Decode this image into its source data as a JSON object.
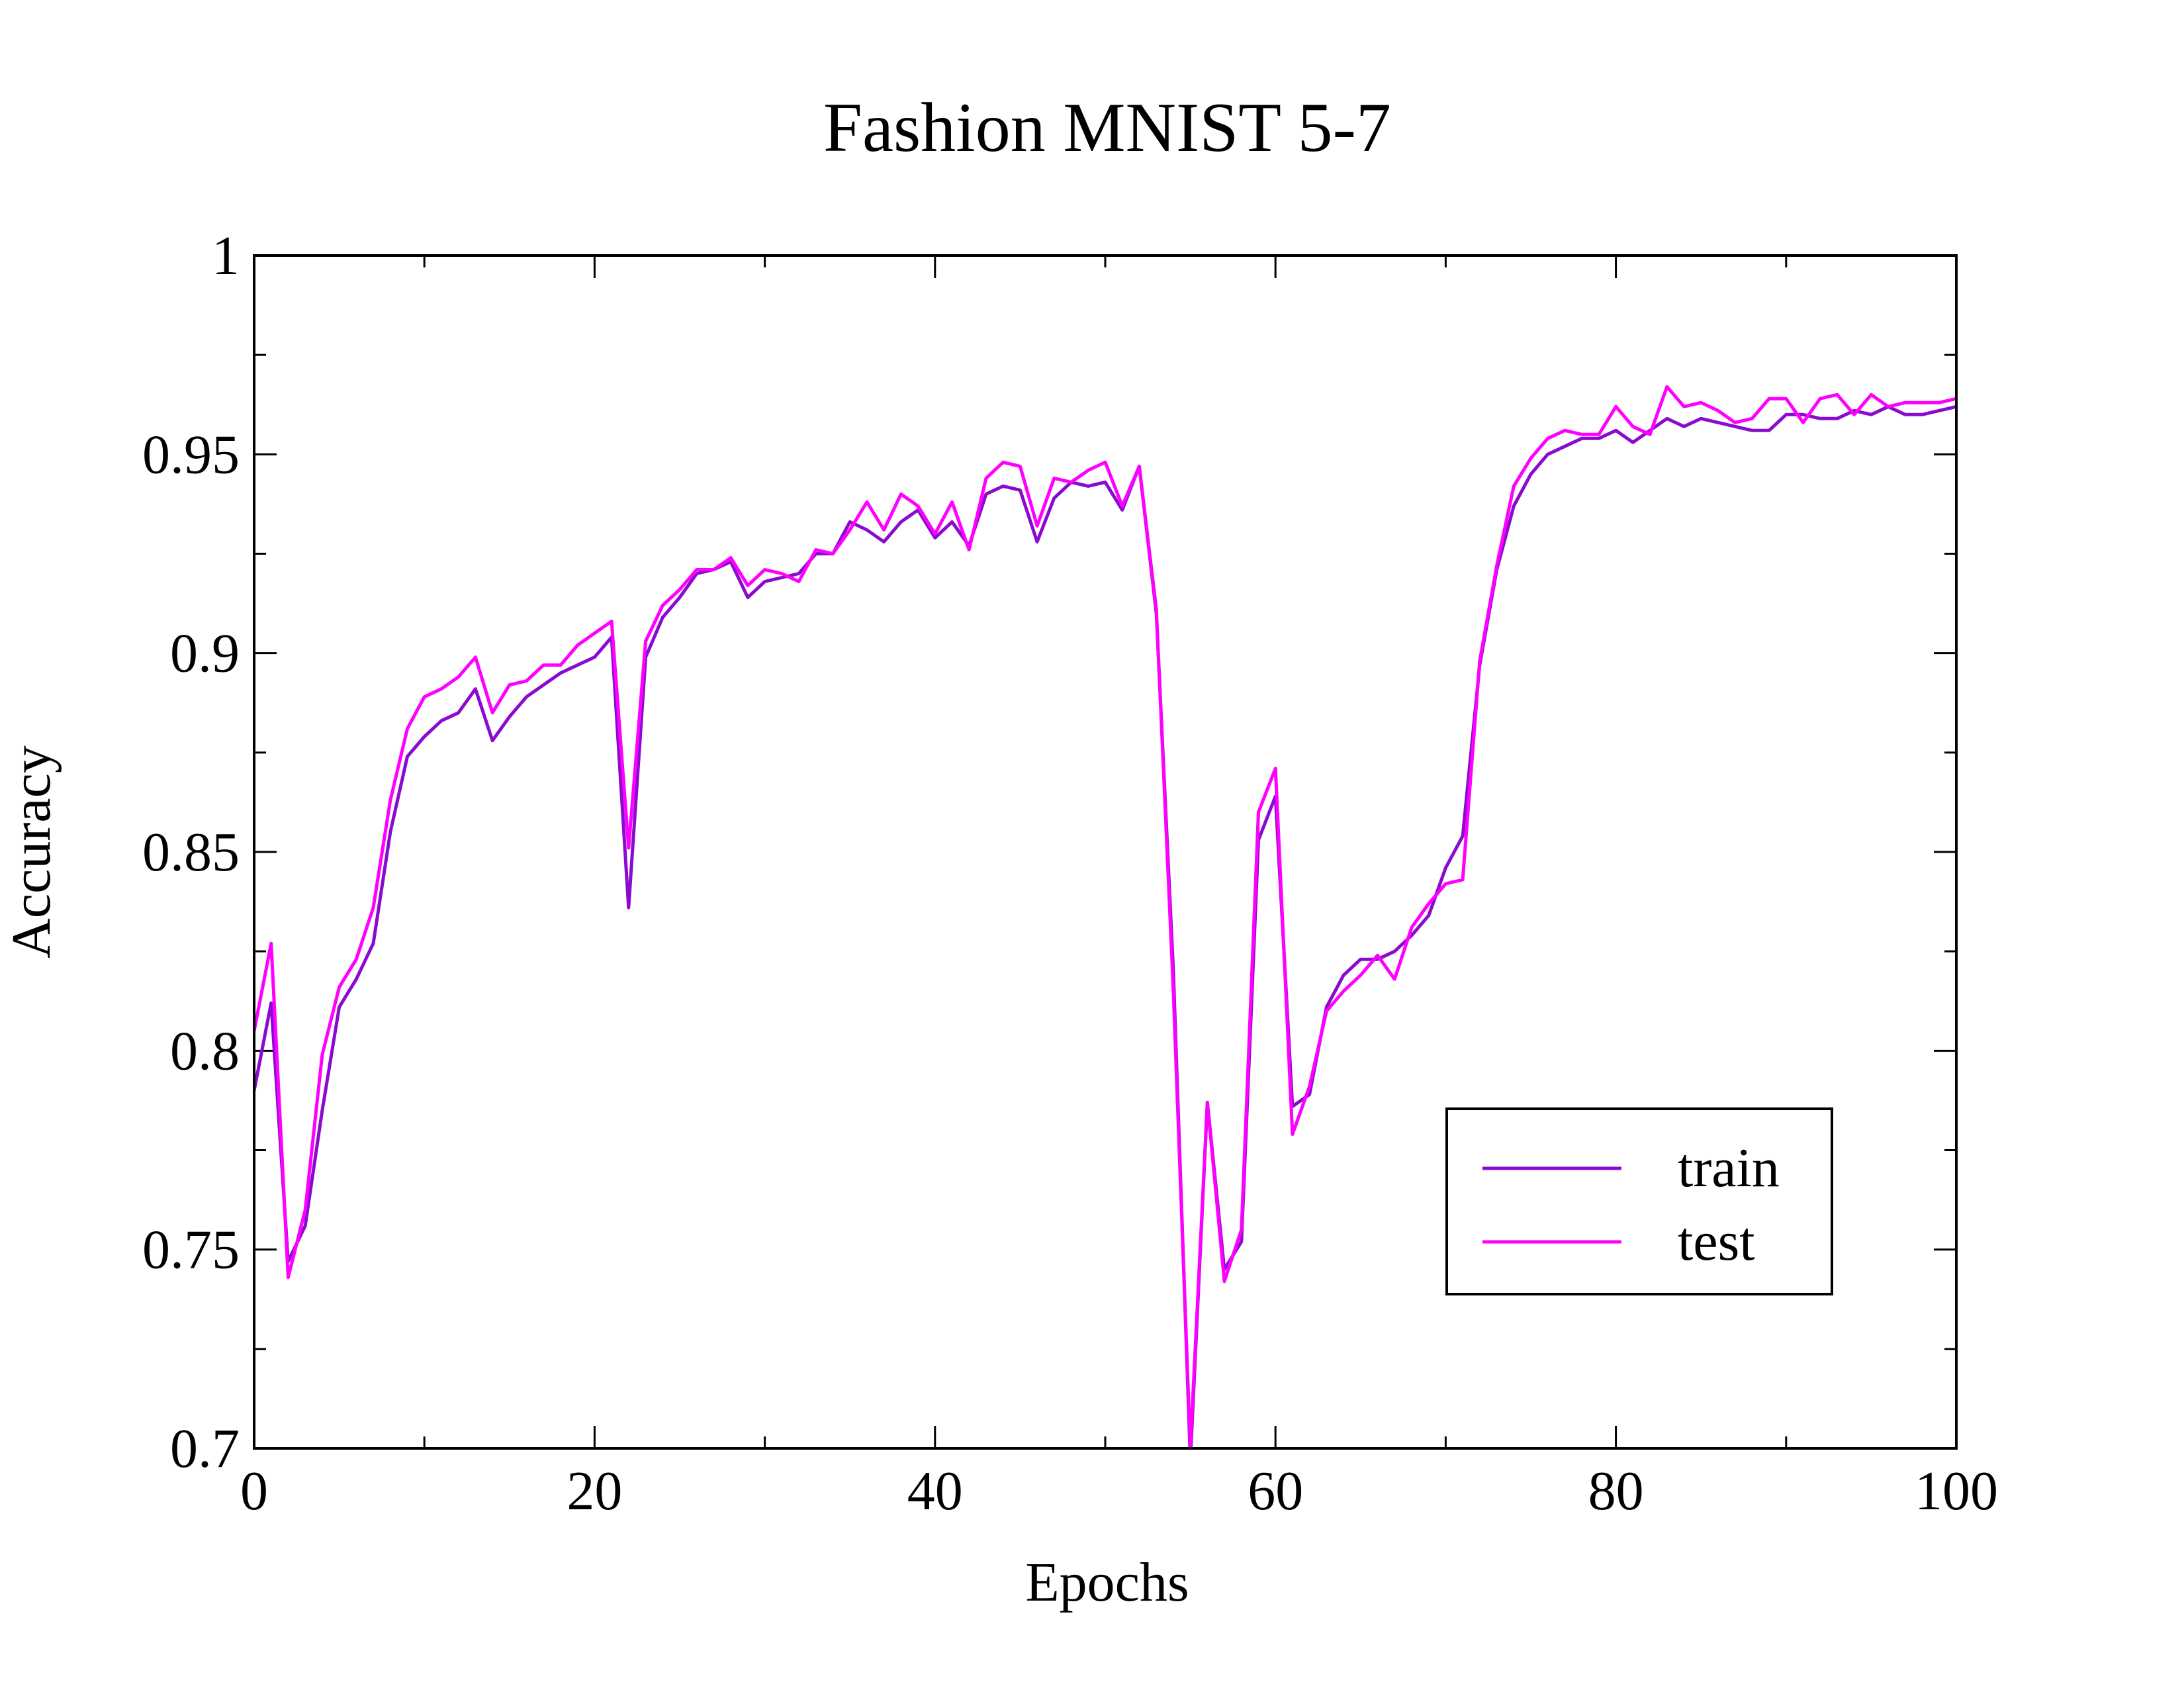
{
  "colors": {
    "train": "#8a0ad0",
    "test": "#ff00ff",
    "axis": "#000000",
    "background": "#ffffff"
  },
  "chart_data": {
    "type": "line",
    "title": "Fashion MNIST 5-7",
    "xlabel": "Epochs",
    "ylabel": "Accuracy",
    "xlim": [
      0,
      100
    ],
    "ylim": [
      0.7,
      1
    ],
    "x_major_ticks": [
      0,
      20,
      40,
      60,
      80,
      100
    ],
    "x_tick_labels": [
      "0",
      "20",
      "40",
      "60",
      "80",
      "100"
    ],
    "x_minor_ticks": [
      10,
      30,
      50,
      70,
      90
    ],
    "y_major_ticks": [
      0.7,
      0.75,
      0.8,
      0.85,
      0.9,
      0.95,
      1
    ],
    "y_tick_labels": [
      "0.7",
      "0.75",
      "0.8",
      "0.85",
      "0.9",
      "0.95",
      "1"
    ],
    "y_minor_ticks": [
      0.725,
      0.775,
      0.825,
      0.875,
      0.925,
      0.975
    ],
    "grid": false,
    "legend_position": "bottom-right",
    "series": [
      {
        "name": "train",
        "color": "#8a0ad0",
        "values": [
          0.79,
          0.812,
          0.747,
          0.756,
          0.785,
          0.811,
          0.818,
          0.827,
          0.855,
          0.874,
          0.879,
          0.883,
          0.885,
          0.891,
          0.878,
          0.884,
          0.889,
          0.892,
          0.895,
          0.897,
          0.899,
          0.904,
          0.836,
          0.899,
          0.909,
          0.914,
          0.92,
          0.921,
          0.923,
          0.914,
          0.918,
          0.919,
          0.92,
          0.925,
          0.925,
          0.933,
          0.931,
          0.928,
          0.933,
          0.936,
          0.929,
          0.933,
          0.927,
          0.94,
          0.942,
          0.941,
          0.928,
          0.939,
          0.943,
          0.942,
          0.943,
          0.936,
          0.947,
          0.91,
          0.82,
          0.697,
          0.787,
          0.745,
          0.752,
          0.853,
          0.864,
          0.786,
          0.789,
          0.811,
          0.819,
          0.823,
          0.823,
          0.825,
          0.829,
          0.834,
          0.846,
          0.854,
          0.897,
          0.921,
          0.937,
          0.945,
          0.95,
          0.952,
          0.954,
          0.954,
          0.956,
          0.953,
          0.956,
          0.959,
          0.957,
          0.959,
          0.958,
          0.957,
          0.956,
          0.956,
          0.96,
          0.96,
          0.959,
          0.959,
          0.961,
          0.96,
          0.962,
          0.96,
          0.96,
          0.961,
          0.962,
          0.963,
          0.963
        ]
      },
      {
        "name": "test",
        "color": "#ff00ff",
        "values": [
          0.805,
          0.827,
          0.743,
          0.76,
          0.799,
          0.816,
          0.823,
          0.836,
          0.863,
          0.881,
          0.889,
          0.891,
          0.894,
          0.899,
          0.885,
          0.892,
          0.893,
          0.897,
          0.897,
          0.902,
          0.905,
          0.908,
          0.851,
          0.903,
          0.912,
          0.916,
          0.921,
          0.921,
          0.924,
          0.917,
          0.921,
          0.92,
          0.918,
          0.926,
          0.925,
          0.931,
          0.938,
          0.931,
          0.94,
          0.937,
          0.93,
          0.938,
          0.926,
          0.944,
          0.948,
          0.947,
          0.932,
          0.944,
          0.943,
          0.946,
          0.948,
          0.937,
          0.947,
          0.911,
          0.815,
          0.7,
          0.787,
          0.742,
          0.755,
          0.86,
          0.871,
          0.779,
          0.791,
          0.81,
          0.815,
          0.819,
          0.824,
          0.818,
          0.831,
          0.837,
          0.842,
          0.843,
          0.898,
          0.922,
          0.942,
          0.949,
          0.954,
          0.956,
          0.955,
          0.955,
          0.962,
          0.957,
          0.955,
          0.967,
          0.962,
          0.963,
          0.961,
          0.958,
          0.959,
          0.964,
          0.964,
          0.958,
          0.964,
          0.965,
          0.96,
          0.965,
          0.962,
          0.963,
          0.963,
          0.963,
          0.964,
          0.964,
          0.962
        ]
      }
    ]
  }
}
